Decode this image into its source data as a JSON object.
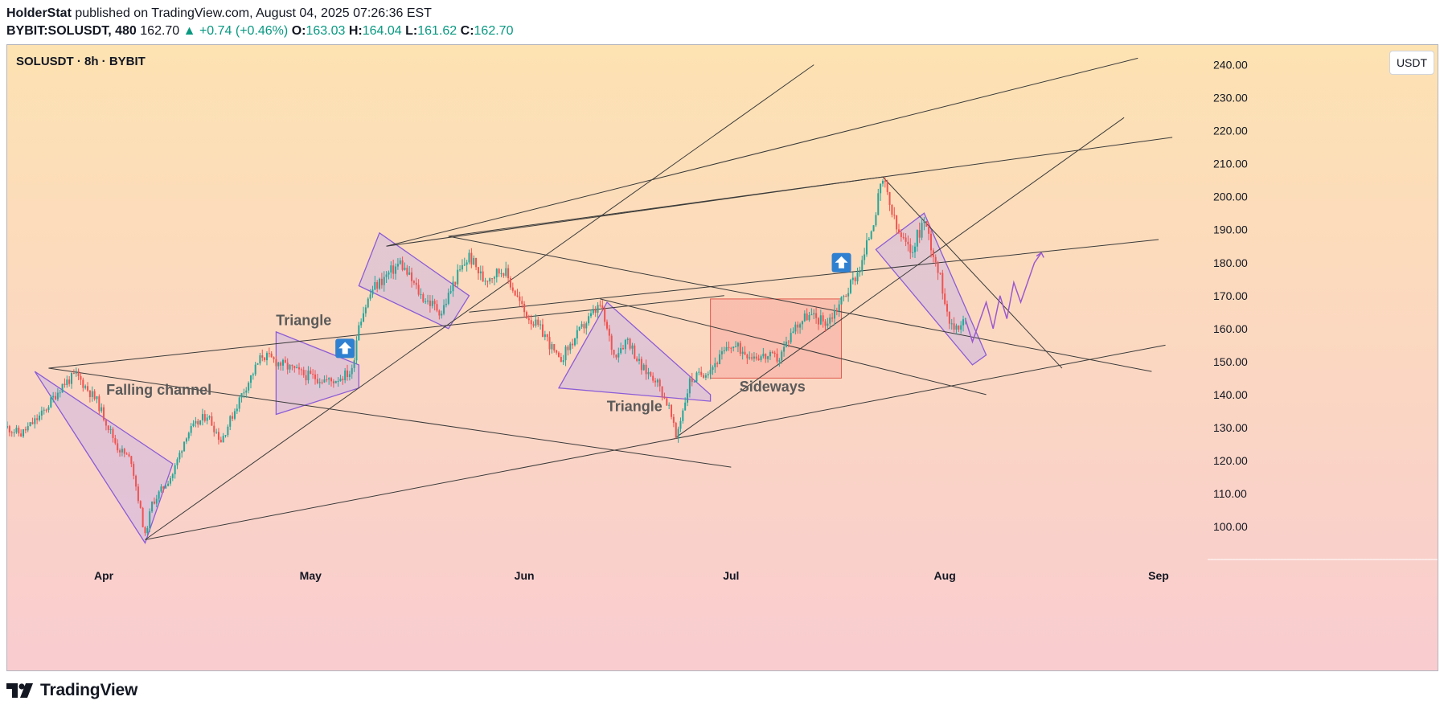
{
  "header": {
    "author": "HolderStat",
    "published_text": "published on TradingView.com, August 04, 2025 07:26:36 EST",
    "symbol": "BYBIT:SOLUSDT, 480",
    "last_price": "162.70",
    "change": "▲ +0.74 (+0.46%)",
    "open_label": "O:",
    "open": "163.03",
    "high_label": "H:",
    "high": "164.04",
    "low_label": "L:",
    "low": "161.62",
    "close_label": "C:",
    "close": "162.70"
  },
  "pane": {
    "title": "SOLUSDT · 8h · BYBIT",
    "unit_button": "USDT"
  },
  "footer": {
    "brand": "TradingView",
    "logo_icon": "tradingview-logo-icon"
  },
  "colors": {
    "bg_top": "#fde2b2",
    "bg_bottom": "#f9ccd0",
    "up": "#26a69a",
    "down": "#ef5350",
    "pattern_fill": "#c9b3e6",
    "pattern_stroke": "#8b5cd6",
    "box_fill": "#f7a9a0",
    "box_stroke": "#e05a4f",
    "trendline": "#3a3a3a",
    "arrow_badge": "#2f80d1",
    "projection": "#9b59d0"
  },
  "chart_data": {
    "type": "candlestick",
    "title": "SOLUSDT · 8h · BYBIT",
    "y_unit": "USDT",
    "ylim": [
      90,
      246
    ],
    "y_ticks": [
      "240.00",
      "230.00",
      "220.00",
      "210.00",
      "200.00",
      "190.00",
      "180.00",
      "170.00",
      "160.00",
      "150.00",
      "140.00",
      "130.00",
      "120.00",
      "110.00",
      "100.00"
    ],
    "x_tick_labels": [
      "Apr",
      "May",
      "Jun",
      "Jul",
      "Aug",
      "Sep"
    ],
    "x_range": [
      "2025-03-18",
      "2025-09-08"
    ],
    "x_ticks": [
      "2025-04-01",
      "2025-05-01",
      "2025-06-01",
      "2025-07-01",
      "2025-08-01",
      "2025-09-01"
    ],
    "price_path": [
      [
        "2025-03-18",
        130
      ],
      [
        "2025-03-20",
        128
      ],
      [
        "2025-03-23",
        134
      ],
      [
        "2025-03-26",
        143
      ],
      [
        "2025-03-28",
        146
      ],
      [
        "2025-03-31",
        138
      ],
      [
        "2025-04-03",
        124
      ],
      [
        "2025-04-05",
        120
      ],
      [
        "2025-04-07",
        97
      ],
      [
        "2025-04-08",
        107
      ],
      [
        "2025-04-11",
        116
      ],
      [
        "2025-04-13",
        128
      ],
      [
        "2025-04-16",
        134
      ],
      [
        "2025-04-18",
        126
      ],
      [
        "2025-04-21",
        140
      ],
      [
        "2025-04-24",
        152
      ],
      [
        "2025-04-27",
        149
      ],
      [
        "2025-04-30",
        146
      ],
      [
        "2025-05-04",
        144
      ],
      [
        "2025-05-07",
        147
      ],
      [
        "2025-05-08",
        162
      ],
      [
        "2025-05-10",
        172
      ],
      [
        "2025-05-12",
        176
      ],
      [
        "2025-05-14",
        180
      ],
      [
        "2025-05-17",
        170
      ],
      [
        "2025-05-20",
        165
      ],
      [
        "2025-05-22",
        175
      ],
      [
        "2025-05-24",
        182
      ],
      [
        "2025-05-26",
        175
      ],
      [
        "2025-05-29",
        178
      ],
      [
        "2025-06-01",
        165
      ],
      [
        "2025-06-04",
        158
      ],
      [
        "2025-06-06",
        150
      ],
      [
        "2025-06-08",
        156
      ],
      [
        "2025-06-10",
        162
      ],
      [
        "2025-06-12",
        167
      ],
      [
        "2025-06-14",
        152
      ],
      [
        "2025-06-16",
        157
      ],
      [
        "2025-06-18",
        148
      ],
      [
        "2025-06-20",
        145
      ],
      [
        "2025-06-22",
        136
      ],
      [
        "2025-06-23",
        127
      ],
      [
        "2025-06-25",
        144
      ],
      [
        "2025-06-28",
        148
      ],
      [
        "2025-07-01",
        155
      ],
      [
        "2025-07-04",
        152
      ],
      [
        "2025-07-08",
        151
      ],
      [
        "2025-07-10",
        160
      ],
      [
        "2025-07-12",
        164
      ],
      [
        "2025-07-15",
        162
      ],
      [
        "2025-07-18",
        172
      ],
      [
        "2025-07-20",
        180
      ],
      [
        "2025-07-22",
        196
      ],
      [
        "2025-07-23",
        205
      ],
      [
        "2025-07-25",
        190
      ],
      [
        "2025-07-27",
        183
      ],
      [
        "2025-07-29",
        193
      ],
      [
        "2025-07-31",
        178
      ],
      [
        "2025-08-02",
        160
      ],
      [
        "2025-08-04",
        162.7
      ]
    ],
    "trendlines": [
      [
        [
          "2025-03-24",
          148
        ],
        [
          "2025-07-01",
          118
        ]
      ],
      [
        [
          "2025-03-24",
          148
        ],
        [
          "2025-06-30",
          170
        ]
      ],
      [
        [
          "2025-04-07",
          96
        ],
        [
          "2025-07-13",
          240
        ]
      ],
      [
        [
          "2025-04-07",
          96
        ],
        [
          "2025-09-02",
          155
        ]
      ],
      [
        [
          "2025-05-12",
          185
        ],
        [
          "2025-08-29",
          242
        ]
      ],
      [
        [
          "2025-05-12",
          185
        ],
        [
          "2025-07-23",
          206
        ]
      ],
      [
        [
          "2025-07-23",
          206
        ],
        [
          "2025-09-03",
          218
        ]
      ],
      [
        [
          "2025-05-21",
          188
        ],
        [
          "2025-08-31",
          147
        ]
      ],
      [
        [
          "2025-05-21",
          188
        ],
        [
          "2025-07-23",
          206
        ]
      ],
      [
        [
          "2025-06-12",
          169
        ],
        [
          "2025-08-07",
          140
        ]
      ],
      [
        [
          "2025-05-24",
          165
        ],
        [
          "2025-09-01",
          187
        ]
      ],
      [
        [
          "2025-06-23",
          127
        ],
        [
          "2025-08-27",
          224
        ]
      ],
      [
        [
          "2025-07-23",
          206
        ],
        [
          "2025-08-18",
          148
        ]
      ]
    ],
    "patterns": [
      {
        "label": "Falling channel",
        "points": [
          [
            "2025-03-22",
            147
          ],
          [
            "2025-04-11",
            119
          ],
          [
            "2025-04-07",
            95
          ]
        ]
      },
      {
        "label": "Triangle",
        "points": [
          [
            "2025-04-26",
            159
          ],
          [
            "2025-05-08",
            149
          ],
          [
            "2025-05-08",
            142
          ],
          [
            "2025-04-26",
            134
          ]
        ]
      },
      {
        "label": "",
        "points": [
          [
            "2025-05-11",
            189
          ],
          [
            "2025-05-24",
            170
          ],
          [
            "2025-05-21",
            160
          ],
          [
            "2025-05-08",
            173
          ]
        ]
      },
      {
        "label": "Triangle",
        "points": [
          [
            "2025-06-13",
            168
          ],
          [
            "2025-06-28",
            140
          ],
          [
            "2025-06-28",
            138
          ],
          [
            "2025-06-06",
            142
          ]
        ]
      },
      {
        "label": "",
        "points": [
          [
            "2025-07-22",
            184
          ],
          [
            "2025-07-29",
            195
          ],
          [
            "2025-08-07",
            152
          ],
          [
            "2025-08-05",
            149
          ]
        ]
      }
    ],
    "box": {
      "label": "Sideways",
      "x": [
        "2025-06-28",
        "2025-07-17"
      ],
      "y": [
        145,
        169
      ]
    },
    "arrow_markers": [
      [
        "2025-05-06",
        154
      ],
      [
        "2025-07-17",
        180
      ]
    ],
    "projection": [
      [
        "2025-08-04",
        162.7
      ],
      [
        "2025-08-05",
        156
      ],
      [
        "2025-08-06",
        162
      ],
      [
        "2025-08-07",
        168
      ],
      [
        "2025-08-08",
        160
      ],
      [
        "2025-08-09",
        170
      ],
      [
        "2025-08-10",
        163
      ],
      [
        "2025-08-11",
        174
      ],
      [
        "2025-08-12",
        168
      ],
      [
        "2025-08-14",
        180
      ],
      [
        "2025-08-15",
        183
      ]
    ]
  }
}
